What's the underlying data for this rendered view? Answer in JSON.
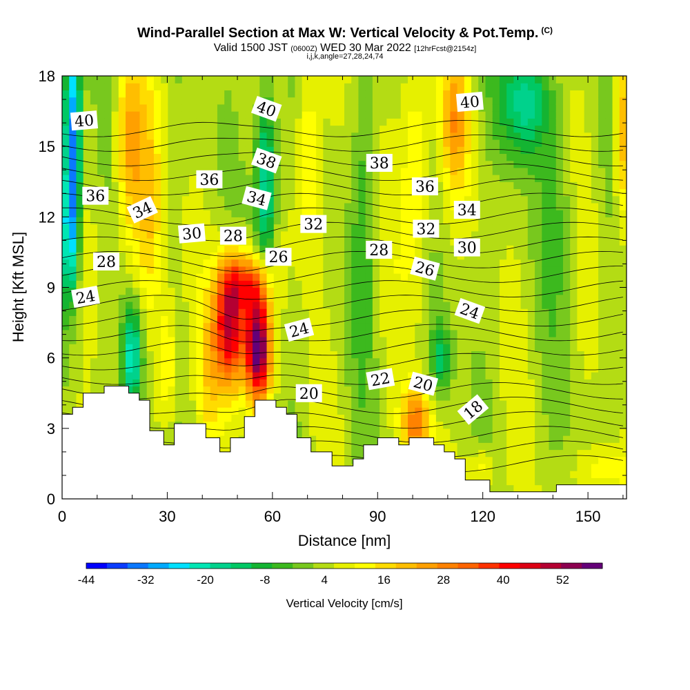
{
  "header": {
    "title": "Wind-Parallel Section at Max W: Vertical Velocity & Pot.Temp.",
    "copyright": "(C)",
    "subtitle_a": "Valid 1500 JST",
    "subtitle_b": "(0600Z)",
    "subtitle_c": "WED 30 Mar 2022",
    "subtitle_d": "[12hrFcst@2154z]",
    "indices": "i,j,k,angle=27,28,24,74"
  },
  "chart_data": {
    "type": "heatmap",
    "title": "Wind-Parallel Section at Max W: Vertical Velocity & Pot.Temp.",
    "xlabel": "Distance [nm]",
    "ylabel": "Height [Kft MSL]",
    "xlim": [
      0,
      161
    ],
    "ylim": [
      0,
      18
    ],
    "xticks": [
      0,
      30,
      60,
      90,
      120,
      150
    ],
    "yticks": [
      0,
      3,
      6,
      9,
      12,
      15,
      18
    ],
    "colorbar": {
      "label": "Vertical Velocity [cm/s]",
      "tick_labels": [
        "-44",
        "-32",
        "-20",
        "-8",
        "4",
        "16",
        "28",
        "40",
        "52"
      ],
      "tick_values": [
        -44,
        -32,
        -20,
        -8,
        4,
        16,
        28,
        40,
        52
      ],
      "range": [
        -44,
        60
      ],
      "colors": [
        "#0000ff",
        "#0a3cff",
        "#0a78ff",
        "#00aaff",
        "#00e0ff",
        "#00e6b4",
        "#00d28c",
        "#00c864",
        "#14b432",
        "#3cb91e",
        "#78c81e",
        "#b4dc14",
        "#e6f000",
        "#ffff00",
        "#ffdc00",
        "#ffbe00",
        "#ffa000",
        "#ff8200",
        "#ff6400",
        "#ff3200",
        "#ff0000",
        "#dc0014",
        "#b40032",
        "#8c0050",
        "#640078"
      ]
    },
    "terrain": [
      [
        0,
        3.6
      ],
      [
        3,
        3.6
      ],
      [
        3,
        3.9
      ],
      [
        6,
        3.9
      ],
      [
        6,
        4.5
      ],
      [
        12,
        4.5
      ],
      [
        12,
        4.8
      ],
      [
        19,
        4.8
      ],
      [
        19,
        4.5
      ],
      [
        22,
        4.5
      ],
      [
        22,
        4.2
      ],
      [
        25,
        4.2
      ],
      [
        25,
        2.9
      ],
      [
        29,
        2.9
      ],
      [
        29,
        2.3
      ],
      [
        32,
        2.3
      ],
      [
        32,
        3.2
      ],
      [
        41,
        3.2
      ],
      [
        41,
        2.6
      ],
      [
        45,
        2.6
      ],
      [
        45,
        2.0
      ],
      [
        48,
        2.0
      ],
      [
        48,
        2.6
      ],
      [
        52,
        2.6
      ],
      [
        52,
        3.5
      ],
      [
        55,
        3.5
      ],
      [
        55,
        4.2
      ],
      [
        61,
        4.2
      ],
      [
        61,
        3.9
      ],
      [
        64,
        3.9
      ],
      [
        64,
        3.6
      ],
      [
        67,
        3.6
      ],
      [
        67,
        2.6
      ],
      [
        71,
        2.6
      ],
      [
        71,
        2.0
      ],
      [
        77,
        2.0
      ],
      [
        77,
        1.4
      ],
      [
        83,
        1.4
      ],
      [
        83,
        1.7
      ],
      [
        86,
        1.7
      ],
      [
        86,
        2.3
      ],
      [
        90,
        2.3
      ],
      [
        90,
        2.6
      ],
      [
        96,
        2.6
      ],
      [
        96,
        2.3
      ],
      [
        99,
        2.3
      ],
      [
        99,
        2.6
      ],
      [
        106,
        2.6
      ],
      [
        106,
        2.3
      ],
      [
        109,
        2.3
      ],
      [
        109,
        2.0
      ],
      [
        112,
        2.0
      ],
      [
        112,
        1.7
      ],
      [
        115,
        1.7
      ],
      [
        115,
        0.8
      ],
      [
        122,
        0.8
      ],
      [
        122,
        0.3
      ],
      [
        141,
        0.3
      ],
      [
        141,
        0.6
      ],
      [
        161,
        0.6
      ]
    ],
    "w_features": [
      {
        "x": 3,
        "z": 15.5,
        "w": -40,
        "sx": 2.5,
        "sz": 4.5
      },
      {
        "x": 2,
        "z": 11,
        "w": -24,
        "sx": 2.5,
        "sz": 3
      },
      {
        "x": 19,
        "z": 15,
        "w": 20,
        "sx": 4,
        "sz": 4
      },
      {
        "x": 25,
        "z": 12,
        "w": 14,
        "sx": 4,
        "sz": 5
      },
      {
        "x": 20,
        "z": 6,
        "w": -30,
        "sx": 3,
        "sz": 2.2
      },
      {
        "x": 30,
        "z": 5.5,
        "w": 14,
        "sx": 3,
        "sz": 3
      },
      {
        "x": 48,
        "z": 7.5,
        "w": 48,
        "sx": 4.5,
        "sz": 2.8
      },
      {
        "x": 56,
        "z": 6.5,
        "w": 58,
        "sx": 3.5,
        "sz": 2.4
      },
      {
        "x": 53,
        "z": 9.3,
        "w": 22,
        "sx": 6,
        "sz": 1.2
      },
      {
        "x": 42,
        "z": 5,
        "w": 8,
        "sx": 3,
        "sz": 3
      },
      {
        "x": 58,
        "z": 13.5,
        "w": -28,
        "sx": 3,
        "sz": 4
      },
      {
        "x": 70,
        "z": 14.5,
        "w": 14,
        "sx": 3.5,
        "sz": 4
      },
      {
        "x": 86,
        "z": 12,
        "w": -8,
        "sx": 3,
        "sz": 6
      },
      {
        "x": 101,
        "z": 3.2,
        "w": 26,
        "sx": 4,
        "sz": 1.5
      },
      {
        "x": 101,
        "z": 14,
        "w": 14,
        "sx": 4,
        "sz": 5
      },
      {
        "x": 108,
        "z": 6,
        "w": -16,
        "sx": 3,
        "sz": 1.5
      },
      {
        "x": 112,
        "z": 16,
        "w": 18,
        "sx": 4,
        "sz": 3
      },
      {
        "x": 132,
        "z": 17,
        "w": -22,
        "sx": 7,
        "sz": 2.5
      },
      {
        "x": 142,
        "z": 12,
        "w": -6,
        "sx": 5,
        "sz": 4
      },
      {
        "x": 160,
        "z": 15.5,
        "w": 20,
        "sx": 2.5,
        "sz": 4
      },
      {
        "x": 120,
        "z": 1.3,
        "w": 12,
        "sx": 4,
        "sz": 1
      },
      {
        "x": 155,
        "z": 1.2,
        "w": 10,
        "sx": 8,
        "sz": 1
      },
      {
        "x": 7,
        "z": 1.8,
        "w": 10,
        "sx": 5,
        "sz": 2
      }
    ],
    "theta_contour_labels": [
      {
        "text": "40",
        "x": 6.3,
        "z": 16.1,
        "angle": -5
      },
      {
        "text": "40",
        "x": 58.3,
        "z": 16.6,
        "angle": 20
      },
      {
        "text": "40",
        "x": 116.3,
        "z": 16.9,
        "angle": -5
      },
      {
        "text": "38",
        "x": 58.3,
        "z": 14.4,
        "angle": 20
      },
      {
        "text": "38",
        "x": 90.5,
        "z": 14.3,
        "angle": 0
      },
      {
        "text": "36",
        "x": 42,
        "z": 13.6,
        "angle": 0
      },
      {
        "text": "36",
        "x": 9.5,
        "z": 12.9,
        "angle": 0
      },
      {
        "text": "36",
        "x": 103.5,
        "z": 13.3,
        "angle": 0
      },
      {
        "text": "34",
        "x": 22.9,
        "z": 12.3,
        "angle": -25
      },
      {
        "text": "34",
        "x": 55.5,
        "z": 12.8,
        "angle": 15
      },
      {
        "text": "34",
        "x": 115.5,
        "z": 12.3,
        "angle": 0
      },
      {
        "text": "32",
        "x": 71.7,
        "z": 11.7,
        "angle": 0
      },
      {
        "text": "32",
        "x": 103.8,
        "z": 11.5,
        "angle": 0
      },
      {
        "text": "30",
        "x": 37,
        "z": 11.3,
        "angle": -5
      },
      {
        "text": "30",
        "x": 115.5,
        "z": 10.7,
        "angle": 0
      },
      {
        "text": "28",
        "x": 48.8,
        "z": 11.2,
        "angle": 0
      },
      {
        "text": "28",
        "x": 12.6,
        "z": 10.1,
        "angle": 0
      },
      {
        "text": "28",
        "x": 90.4,
        "z": 10.6,
        "angle": 0
      },
      {
        "text": "26",
        "x": 61.7,
        "z": 10.3,
        "angle": 0
      },
      {
        "text": "26",
        "x": 103.5,
        "z": 9.8,
        "angle": 15
      },
      {
        "text": "24",
        "x": 6.7,
        "z": 8.6,
        "angle": -10
      },
      {
        "text": "24",
        "x": 67.6,
        "z": 7.2,
        "angle": -15
      },
      {
        "text": "24",
        "x": 116.3,
        "z": 8,
        "angle": 20
      },
      {
        "text": "22",
        "x": 90.8,
        "z": 5.1,
        "angle": -10
      },
      {
        "text": "20",
        "x": 70.4,
        "z": 4.5,
        "angle": 0
      },
      {
        "text": "20",
        "x": 103,
        "z": 4.9,
        "angle": 15
      },
      {
        "text": "18",
        "x": 117.2,
        "z": 3.8,
        "angle": -40
      }
    ]
  }
}
